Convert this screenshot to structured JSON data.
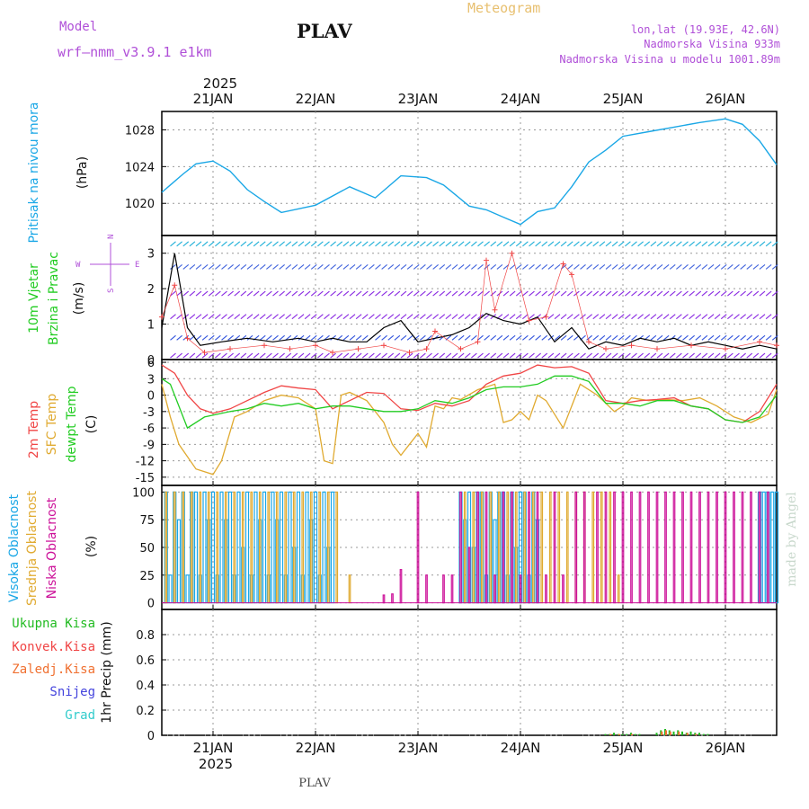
{
  "header": {
    "model_label": "Model",
    "model_name": "wrf–nmm_v3.9.1  e1km",
    "station": "PLAV",
    "product": "Meteogram",
    "lonlat": "lon,lat (19.93E, 42.6N)",
    "elevation": "Nadmorska Visina 933m",
    "model_elevation": "Nadmorska Visina u modelu 1001.89m"
  },
  "footer": {
    "station": "PLAV",
    "credit": "made by Angel"
  },
  "colors": {
    "pressure": "#1aa7e6",
    "temp": "#f04545",
    "sfc_temp": "#e0aa30",
    "dewpt": "#22cc22",
    "high_cloud": "#1aa7e6",
    "mid_cloud": "#e0aa30",
    "low_cloud": "#cc1199",
    "total_precip": "#22bb22",
    "conv_precip": "#f04545",
    "frz_precip": "#f07030",
    "snow": "#4444dd",
    "graupel": "#33cccc",
    "purple_text": "#b050d8",
    "meteogram_text": "#e8c070"
  },
  "chart_data": [
    {
      "type": "line",
      "id": "pressure",
      "ylabel_main": "Pritisak na nivou mora",
      "ylabel_unit": "(hPa)",
      "ylim": [
        1016.5,
        1030.0
      ],
      "yticks": [
        1020,
        1024,
        1028
      ],
      "grid": true,
      "x_start": "2025-01-20T12:00",
      "x_end": "2025-01-26T12:00",
      "date_ticks": [
        "21JAN",
        "22JAN",
        "23JAN",
        "24JAN",
        "25JAN",
        "26JAN"
      ],
      "year_label": "2025",
      "series": [
        {
          "x": [
            0,
            2,
            5,
            8,
            12,
            16,
            20,
            24,
            28,
            36,
            44,
            50,
            56,
            62,
            66,
            72,
            76,
            80,
            84,
            88,
            92,
            96,
            100,
            104,
            108,
            114,
            120,
            126,
            132,
            136,
            140,
            144
          ],
          "y": [
            1021.2,
            1022.0,
            1023.2,
            1024.3,
            1024.6,
            1023.5,
            1021.5,
            1020.2,
            1019.0,
            1019.8,
            1021.8,
            1020.6,
            1023.0,
            1022.8,
            1022.0,
            1019.7,
            1019.3,
            1018.5,
            1017.7,
            1019.1,
            1019.5,
            1021.8,
            1024.5,
            1025.8,
            1027.3,
            1027.8,
            1028.3,
            1028.8,
            1029.2,
            1028.6,
            1026.8,
            1024.2
          ]
        }
      ]
    },
    {
      "type": "line",
      "id": "wind",
      "ylabel_main": "10m Vjetar",
      "ylabel_sub": "Brzina i Pravac",
      "ylabel_unit": "(m/s)",
      "direction_legend": {
        "n": "N",
        "s": "S",
        "w": "W",
        "e": "E"
      },
      "ylim": [
        0,
        3.5
      ],
      "yticks": [
        0,
        1,
        2,
        3
      ],
      "grid": true,
      "series": [
        {
          "name": "speed",
          "x": [
            0,
            3,
            6,
            9,
            14,
            20,
            26,
            32,
            36,
            40,
            44,
            48,
            52,
            56,
            60,
            64,
            68,
            72,
            76,
            80,
            84,
            88,
            92,
            96,
            100,
            104,
            108,
            112,
            116,
            120,
            124,
            128,
            132,
            136,
            140,
            144
          ],
          "y": [
            0.9,
            3.0,
            0.9,
            0.4,
            0.5,
            0.6,
            0.5,
            0.6,
            0.5,
            0.6,
            0.5,
            0.5,
            0.9,
            1.1,
            0.5,
            0.6,
            0.7,
            0.9,
            1.3,
            1.1,
            1.0,
            1.2,
            0.5,
            0.9,
            0.3,
            0.5,
            0.4,
            0.6,
            0.5,
            0.6,
            0.4,
            0.5,
            0.4,
            0.3,
            0.4,
            0.3
          ]
        },
        {
          "name": "gust",
          "x": [
            0,
            3,
            6,
            10,
            16,
            24,
            30,
            36,
            40,
            46,
            52,
            58,
            62,
            64,
            70,
            74,
            76,
            78,
            82,
            86,
            90,
            94,
            96,
            100,
            104,
            110,
            116,
            124,
            132,
            140,
            144
          ],
          "y": [
            1.2,
            2.1,
            0.6,
            0.2,
            0.3,
            0.4,
            0.3,
            0.4,
            0.2,
            0.3,
            0.4,
            0.2,
            0.3,
            0.8,
            0.3,
            0.5,
            2.8,
            1.4,
            3.0,
            1.1,
            1.2,
            2.7,
            2.4,
            0.5,
            0.3,
            0.4,
            0.3,
            0.4,
            0.3,
            0.5,
            0.4
          ]
        }
      ]
    },
    {
      "type": "line",
      "id": "temperature",
      "ylabel_a": "2m Temp",
      "ylabel_b": "SFC Temp",
      "ylabel_c": "dewpt Temp",
      "ylabel_unit": "(C)",
      "ylim": [
        -16.5,
        6.5
      ],
      "yticks": [
        -15,
        -12,
        -9,
        -6,
        -3,
        0,
        3,
        6
      ],
      "grid": true,
      "series": [
        {
          "name": "2m Temp",
          "x": [
            0,
            3,
            6,
            9,
            12,
            16,
            20,
            24,
            28,
            32,
            36,
            40,
            44,
            48,
            52,
            56,
            60,
            64,
            68,
            72,
            76,
            80,
            84,
            88,
            92,
            96,
            100,
            104,
            108,
            112,
            116,
            120,
            124,
            128,
            132,
            136,
            140,
            144
          ],
          "y": [
            5.5,
            4.0,
            0.0,
            -2.5,
            -3.3,
            -2.5,
            -1.0,
            0.5,
            1.7,
            1.3,
            1.0,
            -2.5,
            -1.0,
            0.5,
            0.3,
            -2.5,
            -2.8,
            -1.5,
            -2.0,
            -1.0,
            2.0,
            3.5,
            4.0,
            5.5,
            5.0,
            5.2,
            4.0,
            -1.0,
            -1.5,
            -1.0,
            -0.8,
            -0.5,
            -2.0,
            -2.5,
            -4.5,
            -5.0,
            -3.0,
            2.0
          ]
        },
        {
          "name": "SFC Temp",
          "x": [
            0,
            2,
            4,
            8,
            12,
            14,
            17,
            20,
            24,
            28,
            32,
            36,
            38,
            40,
            42,
            44,
            48,
            52,
            54,
            56,
            58,
            60,
            62,
            64,
            66,
            68,
            70,
            74,
            78,
            80,
            82,
            84,
            86,
            88,
            90,
            94,
            98,
            102,
            106,
            108,
            110,
            114,
            118,
            122,
            126,
            130,
            134,
            138,
            142,
            144
          ],
          "y": [
            2.0,
            -4.0,
            -9.0,
            -13.5,
            -14.5,
            -12.0,
            -4.0,
            -3.0,
            -1.0,
            0.0,
            -0.5,
            -2.5,
            -12.0,
            -12.5,
            0.0,
            0.5,
            -1.0,
            -5.0,
            -9.0,
            -11.0,
            -9.0,
            -7.0,
            -9.5,
            -2.0,
            -2.5,
            -0.5,
            -0.8,
            1.0,
            2.0,
            -5.0,
            -4.5,
            -3.0,
            -4.5,
            0.0,
            -1.0,
            -6.0,
            2.0,
            0.0,
            -3.0,
            -2.0,
            -0.5,
            -1.0,
            -0.8,
            -1.0,
            -0.5,
            -2.0,
            -4.0,
            -5.0,
            -3.5,
            1.0
          ]
        },
        {
          "name": "dewpt Temp",
          "x": [
            0,
            2,
            6,
            10,
            16,
            20,
            24,
            28,
            32,
            36,
            40,
            44,
            48,
            52,
            56,
            60,
            64,
            68,
            72,
            76,
            80,
            84,
            88,
            92,
            96,
            100,
            104,
            108,
            112,
            116,
            120,
            124,
            128,
            132,
            136,
            140,
            144
          ],
          "y": [
            3.0,
            2.0,
            -6.0,
            -4.0,
            -3.0,
            -2.5,
            -1.5,
            -2.0,
            -1.5,
            -2.5,
            -2.0,
            -2.0,
            -2.5,
            -3.0,
            -3.0,
            -2.5,
            -1.0,
            -1.5,
            -0.5,
            1.0,
            1.5,
            1.5,
            2.0,
            3.5,
            3.5,
            2.5,
            -1.5,
            -1.5,
            -2.0,
            -1.0,
            -1.0,
            -2.0,
            -2.5,
            -4.5,
            -5.0,
            -4.0,
            0.0
          ]
        }
      ]
    },
    {
      "type": "bar",
      "id": "clouds",
      "ylabel_a": "Visoka Oblacnost",
      "ylabel_b": "Srednja Oblacnost",
      "ylabel_c": "Niska Oblacnost",
      "ylabel_unit": "(%)",
      "ylim": [
        -6,
        106
      ],
      "yticks": [
        0,
        25,
        50,
        75,
        100
      ],
      "grid": true,
      "series": [
        {
          "name": "Visoka Oblacnost",
          "x": [
            1,
            2,
            3,
            4,
            5,
            6,
            7,
            8,
            9,
            10,
            11,
            12,
            13,
            14,
            15,
            16,
            17,
            18,
            19,
            20,
            21,
            22,
            23,
            24,
            25,
            26,
            27,
            28,
            29,
            30,
            31,
            32,
            33,
            34,
            35,
            36,
            37,
            38,
            39,
            40,
            70,
            71,
            72,
            73,
            74,
            75,
            76,
            77,
            78,
            79,
            80,
            81,
            82,
            83,
            84,
            85,
            86,
            87,
            88,
            140,
            141,
            142,
            143,
            144
          ],
          "y": [
            100,
            25,
            100,
            75,
            100,
            25,
            100,
            100,
            25,
            100,
            75,
            100,
            25,
            100,
            75,
            100,
            25,
            100,
            50,
            100,
            25,
            100,
            75,
            100,
            25,
            100,
            75,
            100,
            25,
            100,
            50,
            100,
            25,
            100,
            75,
            100,
            25,
            100,
            50,
            100,
            100,
            75,
            100,
            50,
            100,
            100,
            25,
            100,
            75,
            100,
            100,
            25,
            100,
            50,
            100,
            100,
            25,
            100,
            75,
            100,
            100,
            100,
            100,
            100
          ]
        },
        {
          "name": "Srednja Oblacnost",
          "x": [
            1,
            3,
            5,
            7,
            9,
            11,
            13,
            15,
            17,
            19,
            21,
            23,
            25,
            27,
            29,
            31,
            33,
            35,
            37,
            39,
            41,
            44,
            71,
            73,
            75,
            77,
            79,
            81,
            83,
            85,
            87,
            89,
            91,
            93,
            95,
            97,
            99,
            101,
            103,
            105,
            107
          ],
          "y": [
            100,
            100,
            100,
            100,
            100,
            100,
            100,
            100,
            100,
            100,
            100,
            100,
            100,
            100,
            100,
            100,
            100,
            100,
            100,
            100,
            100,
            25,
            100,
            100,
            100,
            100,
            100,
            100,
            100,
            100,
            100,
            100,
            100,
            100,
            100,
            100,
            100,
            100,
            100,
            100,
            25
          ]
        },
        {
          "name": "Niska Oblacnost",
          "x": [
            52,
            54,
            56,
            60,
            62,
            66,
            68,
            70,
            72,
            74,
            76,
            78,
            80,
            82,
            84,
            86,
            88,
            90,
            92,
            94,
            97,
            99,
            102,
            104,
            106,
            108,
            110,
            112,
            114,
            116,
            118,
            120,
            122,
            124,
            126,
            128,
            130,
            132,
            134,
            136,
            138,
            140,
            142
          ],
          "y": [
            7,
            8,
            30,
            100,
            25,
            25,
            25,
            100,
            50,
            100,
            100,
            25,
            100,
            100,
            25,
            100,
            100,
            25,
            100,
            25,
            100,
            100,
            100,
            100,
            100,
            100,
            100,
            100,
            100,
            100,
            100,
            100,
            100,
            100,
            100,
            100,
            100,
            100,
            100,
            100,
            100,
            100,
            100
          ]
        }
      ]
    },
    {
      "type": "bar",
      "id": "precip",
      "ylabel_main": "1hr Precip (mm)",
      "legend": [
        "Ukupna Kisa",
        "Konvek.Kisa",
        "Zaledj.Kisa",
        "Snijeg",
        "Grad"
      ],
      "ylim": [
        0,
        1.0
      ],
      "yticks": [
        0,
        0.2,
        0.4,
        0.6,
        0.8
      ],
      "grid": true,
      "series": [
        {
          "name": "Ukupna Kisa",
          "x": [
            104,
            105,
            106,
            107,
            108,
            109,
            110,
            111,
            112,
            116,
            117,
            118,
            119,
            120,
            121,
            122,
            123,
            124,
            125,
            126,
            127,
            128
          ],
          "y": [
            0.01,
            0.01,
            0.02,
            0.01,
            0.01,
            0.01,
            0.02,
            0.01,
            0.01,
            0.02,
            0.04,
            0.05,
            0.04,
            0.03,
            0.04,
            0.03,
            0.02,
            0.03,
            0.02,
            0.02,
            0.01,
            0.01
          ]
        },
        {
          "name": "Zaledj.Kisa",
          "x": [
            105,
            107,
            110,
            117,
            118,
            119,
            121,
            123,
            125
          ],
          "y": [
            0.01,
            0.01,
            0.01,
            0.03,
            0.04,
            0.03,
            0.03,
            0.02,
            0.01
          ]
        }
      ]
    }
  ]
}
